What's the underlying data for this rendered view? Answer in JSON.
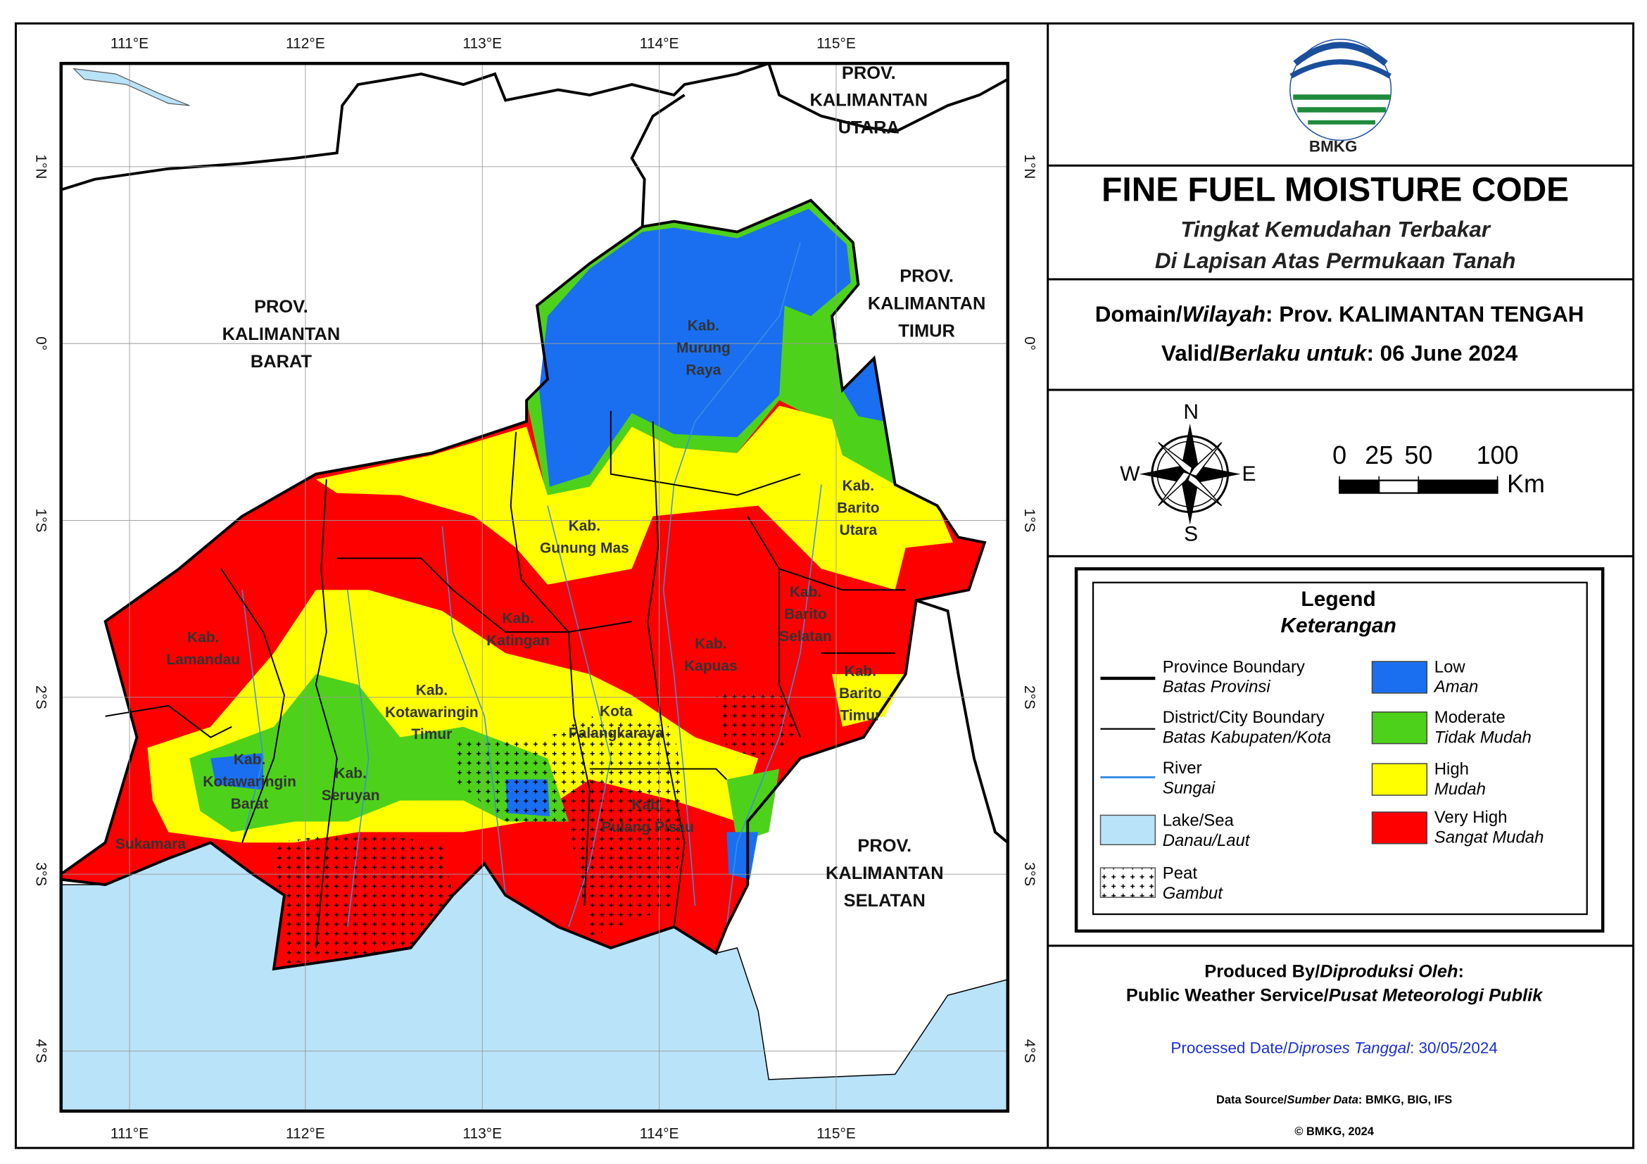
{
  "map": {
    "lon_labels": [
      "111°E",
      "112°E",
      "113°E",
      "114°E",
      "115°E"
    ],
    "lat_labels": [
      "1°N",
      "0°",
      "1°S",
      "2°S",
      "3°S",
      "4°S"
    ],
    "provinces": [
      {
        "lines": [
          "PROV.",
          "KALIMANTAN",
          "UTARA"
        ]
      },
      {
        "lines": [
          "PROV.",
          "KALIMANTAN",
          "BARAT"
        ]
      },
      {
        "lines": [
          "PROV.",
          "KALIMANTAN",
          "TIMUR"
        ]
      },
      {
        "lines": [
          "PROV.",
          "KALIMANTAN",
          "SELATAN"
        ]
      }
    ],
    "districts": [
      {
        "lines": [
          "Kab.",
          "Murung",
          "Raya"
        ]
      },
      {
        "lines": [
          "Kab.",
          "Gunung Mas"
        ]
      },
      {
        "lines": [
          "Kab.",
          "Barito",
          "Utara"
        ]
      },
      {
        "lines": [
          "Kab.",
          "Katingan"
        ]
      },
      {
        "lines": [
          "Kab.",
          "Lamandau"
        ]
      },
      {
        "lines": [
          "Kab.",
          "Kapuas"
        ]
      },
      {
        "lines": [
          "Kab.",
          "Barito",
          "Selatan"
        ]
      },
      {
        "lines": [
          "Kab.",
          "Barito",
          "Timur"
        ]
      },
      {
        "lines": [
          "Kab.",
          "Kotawaringin",
          "Timur"
        ]
      },
      {
        "lines": [
          "Kota",
          "Palangkaraya"
        ]
      },
      {
        "lines": [
          "Kab.",
          "Kotawaringin",
          "Barat"
        ]
      },
      {
        "lines": [
          "Kab.",
          "Seruyan"
        ]
      },
      {
        "lines": [
          "Kab.",
          "Pulang Pisau"
        ]
      },
      {
        "lines": [
          "Sukamara"
        ]
      }
    ]
  },
  "header": {
    "logo_text": "BMKG",
    "title": "FINE FUEL MOISTURE CODE",
    "subtitle": [
      "Tingkat Kemudahan Terbakar",
      "Di Lapisan Atas Permukaan Tanah"
    ]
  },
  "domain": {
    "label": "Domain/",
    "label_id": "Wilayah",
    "value": ": Prov. KALIMANTAN TENGAH"
  },
  "valid": {
    "label": "Valid/",
    "label_id": "Berlaku untuk",
    "value": ": 06 June 2024"
  },
  "compass": {
    "north": "N",
    "east": "E",
    "south": "S",
    "west": "W"
  },
  "scale": {
    "ticks": [
      0,
      25,
      50,
      100
    ],
    "unit": "Km"
  },
  "legend": {
    "title": "Legend",
    "subtitle": "Keterangan",
    "features": [
      {
        "label": "Province Boundary",
        "label_id": "Batas Provinsi"
      },
      {
        "label": "District/City Boundary",
        "label_id": "Batas Kabupaten/Kota"
      },
      {
        "label": "River",
        "label_id": "Sungai",
        "color": "#3a8ee6"
      },
      {
        "label": "Lake/Sea",
        "label_id": "Danau/Laut",
        "color": "#b9e3f8"
      },
      {
        "label": "Peat",
        "label_id": "Gambut"
      }
    ],
    "classes": [
      {
        "label": "Low",
        "label_id": "Aman",
        "color": "#1a6ff0"
      },
      {
        "label": "Moderate",
        "label_id": "Tidak Mudah",
        "color": "#4ed11a"
      },
      {
        "label": "High",
        "label_id": "Mudah",
        "color": "#ffff00"
      },
      {
        "label": "Very High",
        "label_id": "Sangat Mudah",
        "color": "#ff0000"
      }
    ]
  },
  "footer": {
    "produced": {
      "label": "Produced By/",
      "label_id": "Diproduksi Oleh",
      "suffix": ":"
    },
    "service": {
      "label": "Public Weather Service/",
      "label_id": "Pusat Meteorologi Publik"
    },
    "processed": {
      "label": "Processed Date/",
      "label_id": "Diproses Tanggal",
      "value": ": 30/05/2024"
    },
    "source": {
      "label": "Data Source/",
      "label_id": "Sumber Data",
      "value": ": BMKG, BIG, IFS"
    },
    "copyright": "© BMKG, 2024"
  }
}
